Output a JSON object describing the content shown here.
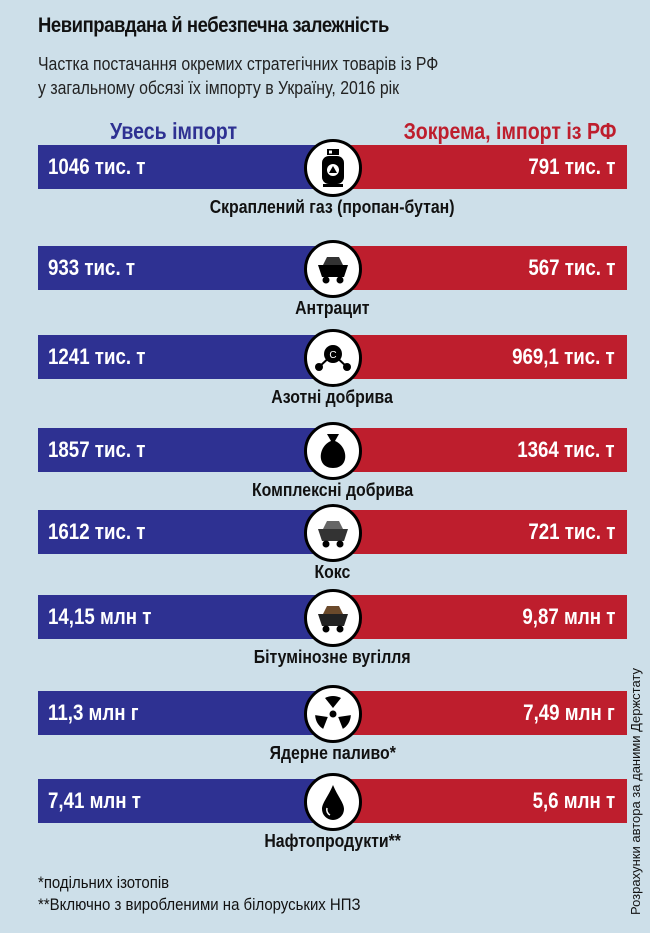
{
  "title": "Невиправдана й небезпечна залежність",
  "subtitle_line1": "Частка постачання окремих стратегічних товарів із РФ",
  "subtitle_line2": "у загальному обсязі їх імпорту в Україну, 2016 рік",
  "colors": {
    "total": "#2e3192",
    "russia": "#be1e2d",
    "background": "#cddfe9"
  },
  "chart_data": {
    "type": "table",
    "columns": [
      "Увесь імпорт",
      "Зокрема, імпорт із РФ"
    ],
    "rows": [
      {
        "category": "Скраплений газ (пропан-бутан)",
        "icon": "gas-cylinder-icon",
        "total": "1046 тис. т",
        "russia": "791 тис. т"
      },
      {
        "category": "Антрацит",
        "icon": "coal-cart-icon",
        "total": "933 тис. т",
        "russia": "567 тис. т"
      },
      {
        "category": "Азотні добрива",
        "icon": "molecule-icon",
        "total": "1241 тис. т",
        "russia": "969,1 тис. т"
      },
      {
        "category": "Комплексні добрива",
        "icon": "fertilizer-bag-icon",
        "total": "1857 тис. т",
        "russia": "1364 тис. т"
      },
      {
        "category": "Кокс",
        "icon": "coke-cart-icon",
        "total": "1612 тис. т",
        "russia": "721 тис. т"
      },
      {
        "category": "Бітумінозне вугілля",
        "icon": "coal-cart-brown-icon",
        "total": "14,15 млн т",
        "russia": "9,87 млн т"
      },
      {
        "category": "Ядерне паливо*",
        "icon": "radiation-icon",
        "total": "11,3 млн г",
        "russia": "7,49 млн г"
      },
      {
        "category": "Нафтопродукти**",
        "icon": "oil-drop-icon",
        "total": "7,41 млн т",
        "russia": "5,6 млн т"
      }
    ]
  },
  "notes": [
    "*подільних ізотопів",
    "**Включно з виробленими на білоруських НПЗ"
  ],
  "source": "Розрахунки автора за даними Держстату"
}
